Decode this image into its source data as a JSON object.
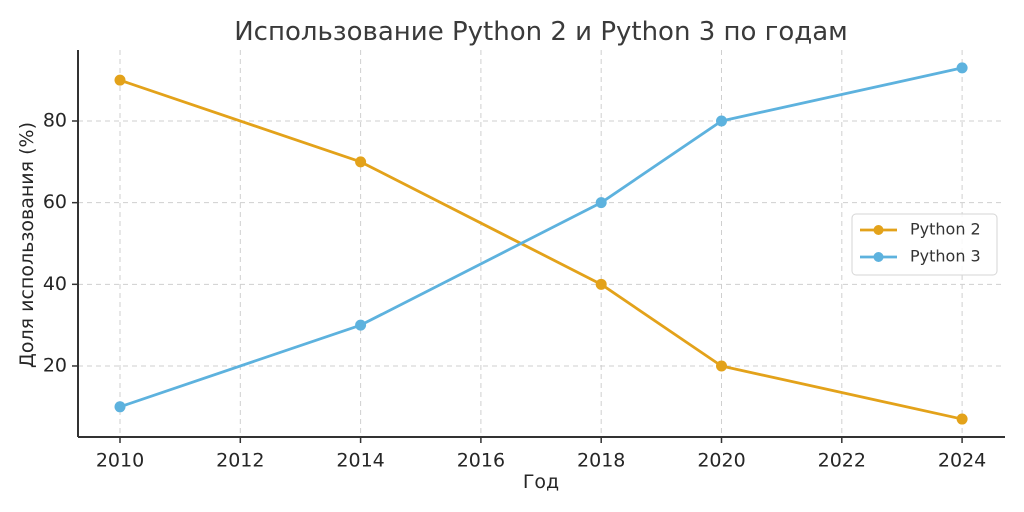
{
  "chart_data": {
    "type": "line",
    "title": "Использование Python 2 и Python 3 по годам",
    "xlabel": "Год",
    "ylabel": "Доля использования (%)",
    "x": [
      2010,
      2014,
      2018,
      2020,
      2024
    ],
    "series": [
      {
        "name": "Python 2",
        "color": "#E3A21A",
        "values": [
          90,
          70,
          40,
          20,
          7
        ]
      },
      {
        "name": "Python 3",
        "color": "#5DB2DE",
        "values": [
          10,
          30,
          60,
          80,
          93
        ]
      }
    ],
    "xticks": [
      2010,
      2012,
      2014,
      2016,
      2018,
      2020,
      2022,
      2024
    ],
    "yticks": [
      20,
      40,
      60,
      80
    ],
    "xlim": [
      2009.3,
      2024.7
    ],
    "ylim": [
      2.8,
      97.3
    ],
    "grid": true,
    "legend_position": "center right",
    "markers": "circle"
  }
}
